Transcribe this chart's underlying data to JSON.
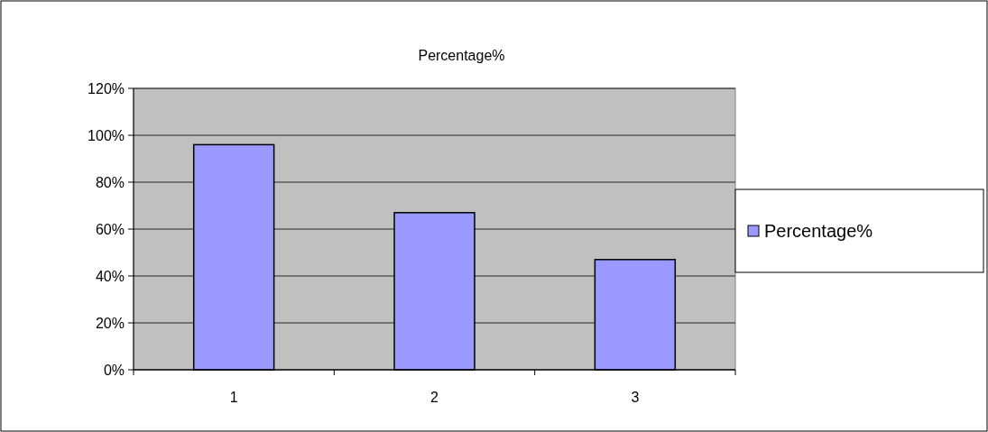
{
  "chart_data": {
    "type": "bar",
    "title": "Percentage%",
    "categories": [
      "1",
      "2",
      "3"
    ],
    "series": [
      {
        "name": "Percentage%",
        "color": "#9999ff",
        "values": [
          96,
          67,
          47
        ]
      }
    ],
    "ylim": [
      0,
      120
    ],
    "yticks": [
      {
        "value": 0,
        "label": "0%"
      },
      {
        "value": 20,
        "label": "20%"
      },
      {
        "value": 40,
        "label": "40%"
      },
      {
        "value": 60,
        "label": "60%"
      },
      {
        "value": 80,
        "label": "80%"
      },
      {
        "value": 100,
        "label": "100%"
      },
      {
        "value": 120,
        "label": "120%"
      }
    ],
    "grid": "y",
    "legend": "right"
  }
}
